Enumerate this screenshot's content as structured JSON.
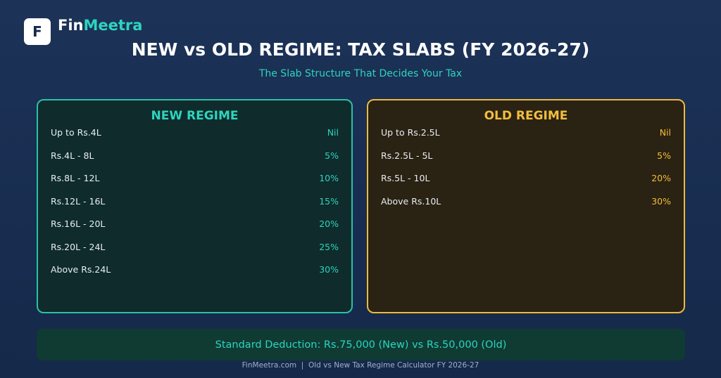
{
  "brand": {
    "logo_letter": "F",
    "name_part1": "Fin",
    "name_part2": "Meetra"
  },
  "header": {
    "title": "NEW vs OLD REGIME: TAX SLABS (FY 2026-27)",
    "subtitle": "The Slab Structure That Decides Your Tax"
  },
  "panels": [
    {
      "title": "NEW REGIME",
      "rows": [
        [
          "Up to Rs.4L",
          "Nil"
        ],
        [
          "Rs.4L - 8L",
          "5%"
        ],
        [
          "Rs.8L - 12L",
          "10%"
        ],
        [
          "Rs.12L - 16L",
          "15%"
        ],
        [
          "Rs.16L - 20L",
          "20%"
        ],
        [
          "Rs.20L - 24L",
          "25%"
        ],
        [
          "Above Rs.24L",
          "30%"
        ]
      ]
    },
    {
      "title": "OLD REGIME",
      "rows": [
        [
          "Up to Rs.2.5L",
          "Nil"
        ],
        [
          "Rs.2.5L - 5L",
          "5%"
        ],
        [
          "Rs.5L - 10L",
          "20%"
        ],
        [
          "Above Rs.10L",
          "30%"
        ]
      ]
    }
  ],
  "note": "Standard Deduction: Rs.75,000 (New) vs Rs.50,000 (Old)",
  "footer": "FinMeetra.com  |  Old vs New Tax Regime Calculator FY 2026-27"
}
